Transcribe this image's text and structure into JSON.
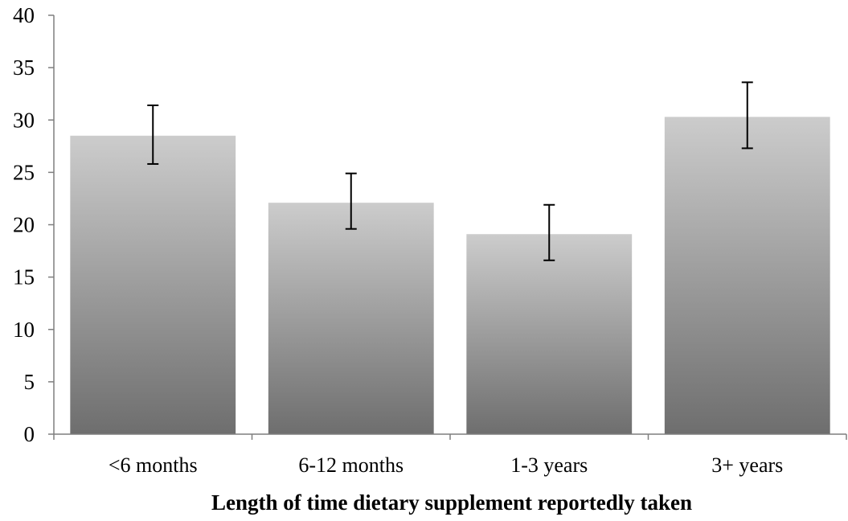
{
  "chart_data": {
    "type": "bar",
    "categories": [
      "<6 months",
      "6-12 months",
      "1-3 years",
      "3+ years"
    ],
    "values": [
      28.5,
      22.1,
      19.1,
      30.3
    ],
    "error_low": [
      25.8,
      19.6,
      16.6,
      27.3
    ],
    "error_high": [
      31.4,
      24.9,
      21.9,
      33.6
    ],
    "xlabel": "Length of time dietary supplement reportedly taken",
    "ylabel": "",
    "ylim": [
      0,
      40
    ],
    "yticks": [
      0,
      5,
      10,
      15,
      20,
      25,
      30,
      35,
      40
    ],
    "grid": false,
    "legend": "none",
    "colors": {
      "bar_top": "#cccccc",
      "bar_bottom": "#6e6e6e",
      "axis": "#7f7f7f",
      "error_bar": "#000000"
    }
  }
}
